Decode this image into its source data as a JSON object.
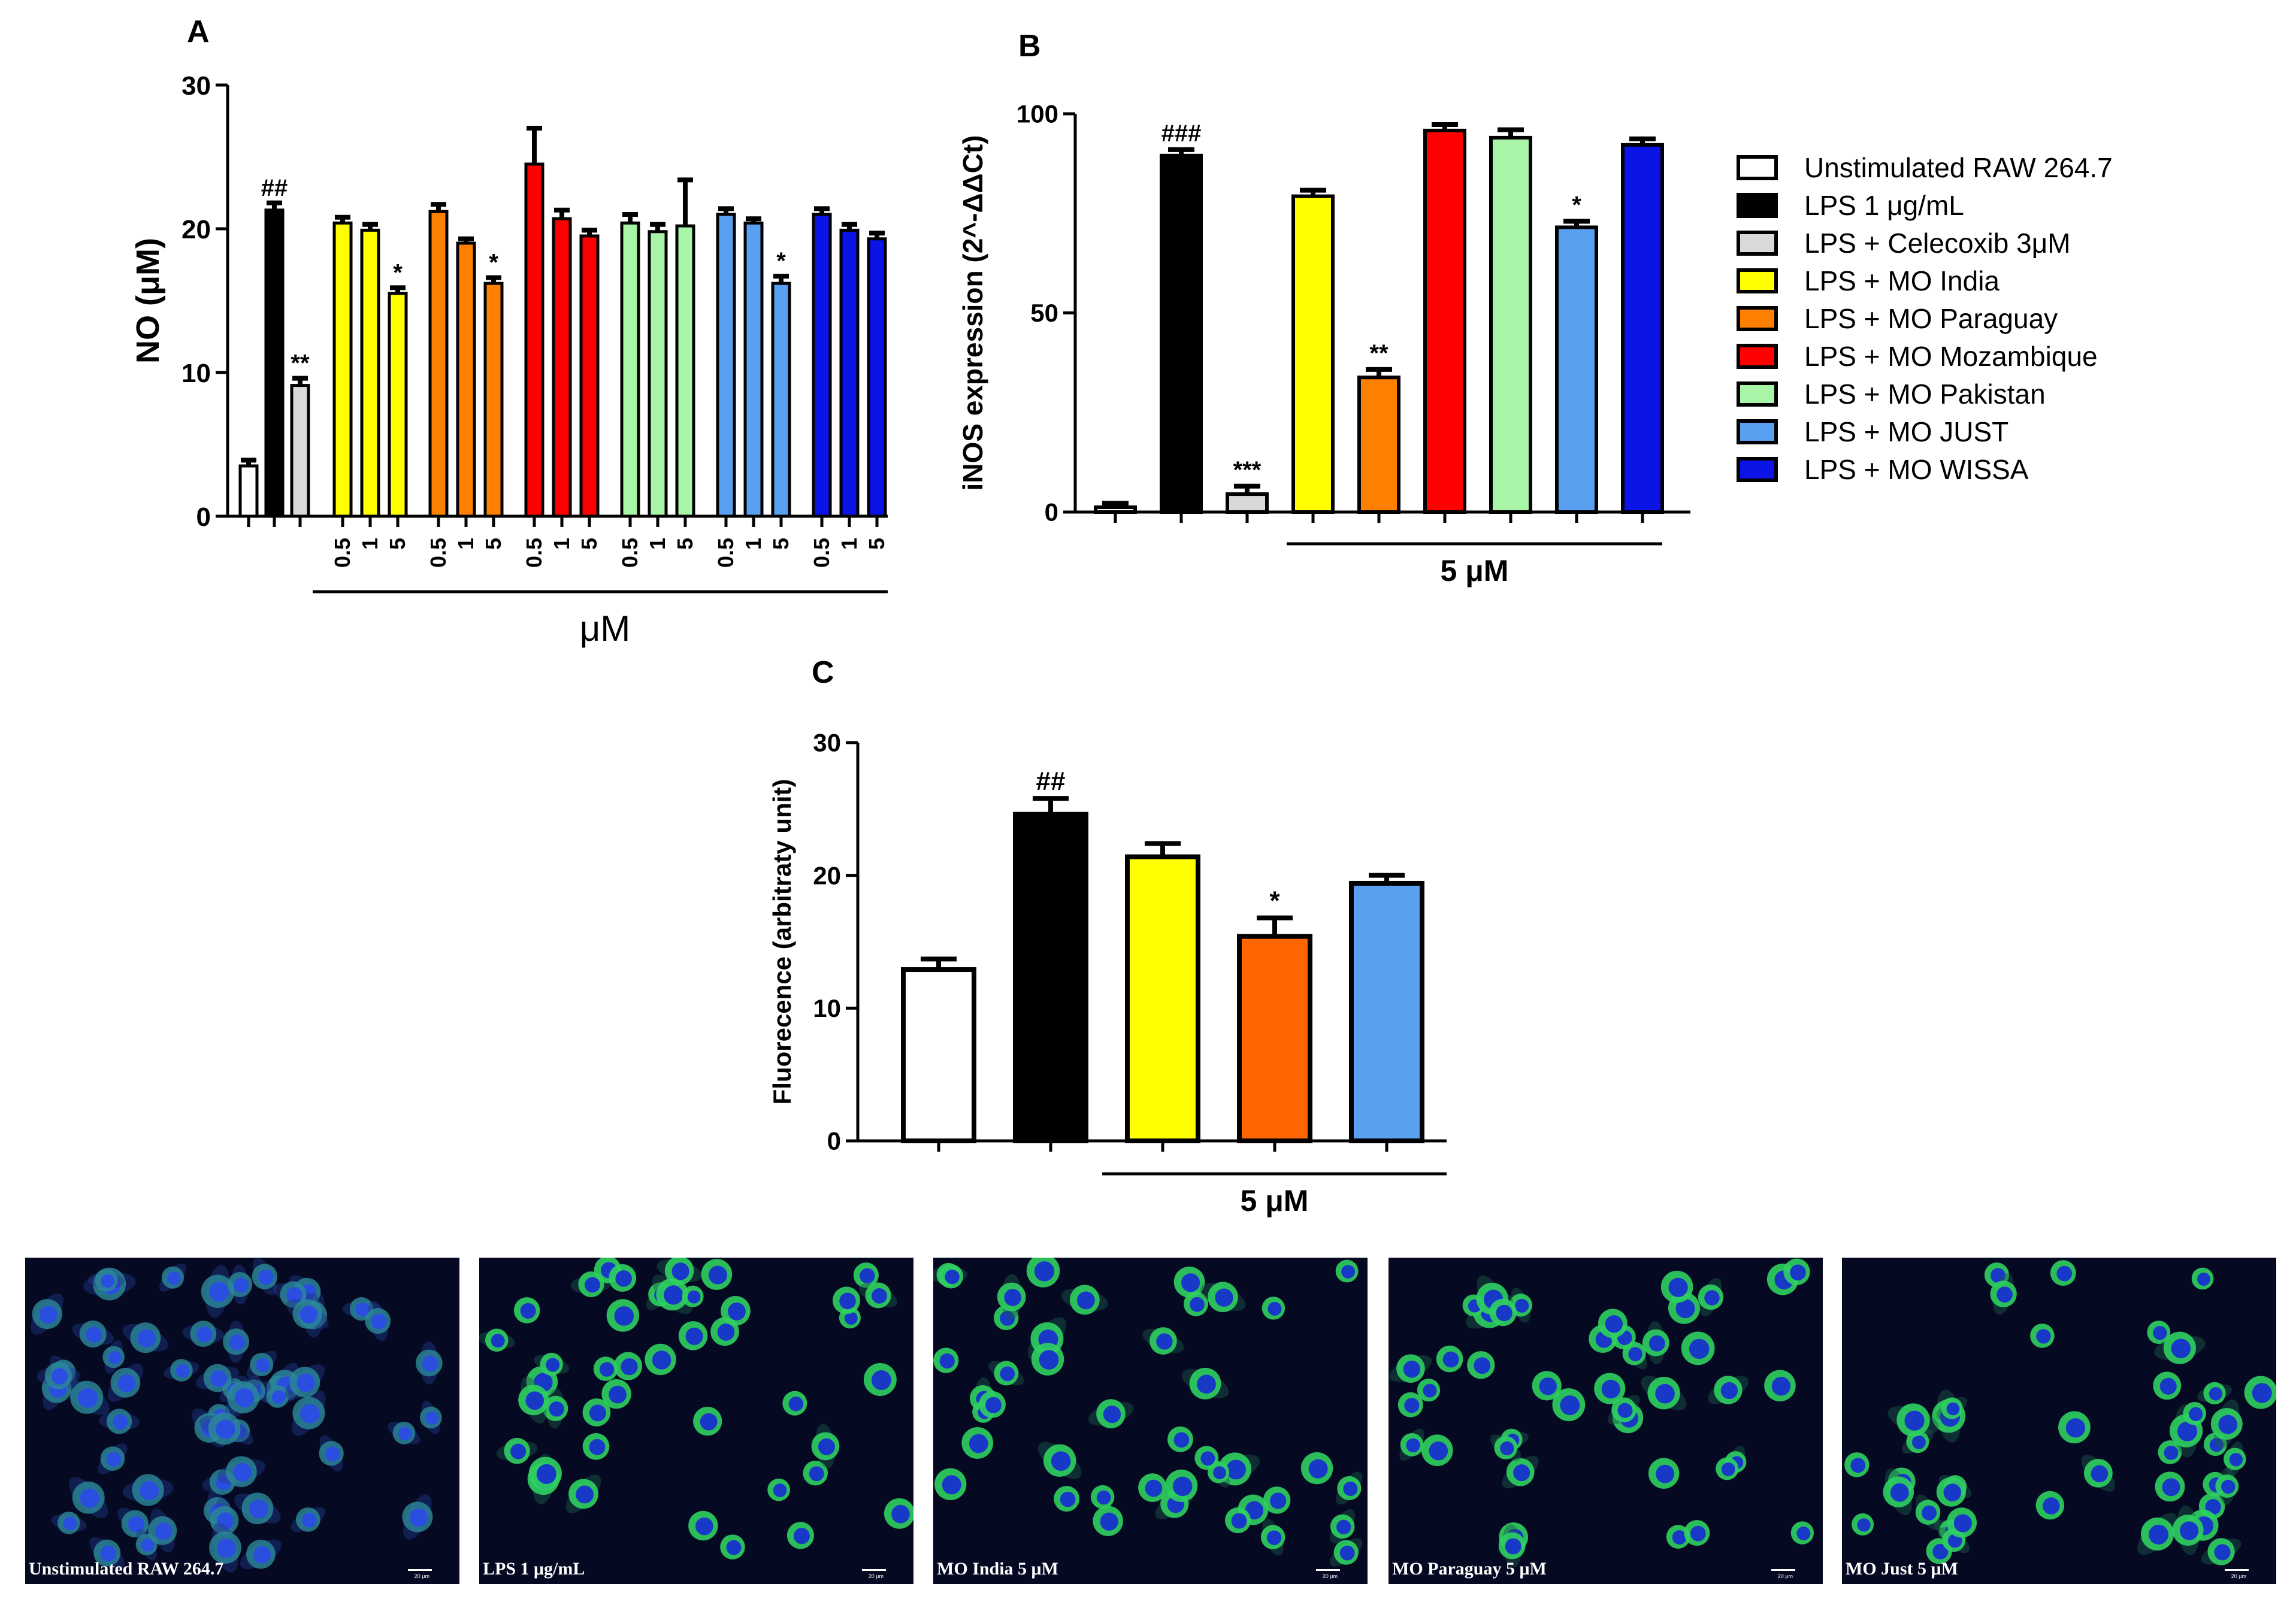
{
  "panel_labels": {
    "a": "A",
    "b": "B",
    "c": "C"
  },
  "colors": {
    "unstimulated": "#ffffff",
    "lps": "#000000",
    "celecoxib": "#d9d9d9",
    "india": "#ffff00",
    "paraguay": "#ff8000",
    "mozambique": "#ff0000",
    "pakistan": "#a8f5a8",
    "just": "#5aa0f0",
    "wissa": "#0a14e6"
  },
  "legend": [
    {
      "label": "Unstimulated RAW 264.7",
      "color": "#ffffff"
    },
    {
      "label": "LPS 1 μg/mL",
      "color": "#000000"
    },
    {
      "label": "LPS + Celecoxib 3μM",
      "color": "#d9d9d9"
    },
    {
      "label": "LPS + MO India",
      "color": "#ffff00"
    },
    {
      "label": "LPS + MO Paraguay",
      "color": "#ff8000"
    },
    {
      "label": "LPS + MO Mozambique",
      "color": "#ff0000"
    },
    {
      "label": "LPS + MO Pakistan",
      "color": "#a8f5a8"
    },
    {
      "label": "LPS + MO JUST",
      "color": "#5aa0f0"
    },
    {
      "label": "LPS + MO WISSA",
      "color": "#0a14e6"
    }
  ],
  "chart_data": [
    {
      "panel": "A",
      "type": "bar",
      "ylabel": "NO (μM)",
      "xlabel": "μM",
      "ylim": [
        0,
        30
      ],
      "yticks": [
        0,
        10,
        20,
        30
      ],
      "bars": [
        {
          "group": "Unstimulated RAW 264.7",
          "dose": "",
          "value": 3.5,
          "error": 0.4,
          "color": "#ffffff",
          "annotation": ""
        },
        {
          "group": "LPS 1 μg/mL",
          "dose": "",
          "value": 21.3,
          "error": 0.5,
          "color": "#000000",
          "annotation": "##"
        },
        {
          "group": "LPS + Celecoxib 3μM",
          "dose": "",
          "value": 9.1,
          "error": 0.5,
          "color": "#d9d9d9",
          "annotation": "**"
        },
        {
          "group": "LPS + MO India",
          "dose": "0.5",
          "value": 20.4,
          "error": 0.4,
          "color": "#ffff00",
          "annotation": ""
        },
        {
          "group": "LPS + MO India",
          "dose": "1",
          "value": 19.9,
          "error": 0.4,
          "color": "#ffff00",
          "annotation": ""
        },
        {
          "group": "LPS + MO India",
          "dose": "5",
          "value": 15.5,
          "error": 0.4,
          "color": "#ffff00",
          "annotation": "*"
        },
        {
          "group": "LPS + MO Paraguay",
          "dose": "0.5",
          "value": 21.2,
          "error": 0.5,
          "color": "#ff8000",
          "annotation": ""
        },
        {
          "group": "LPS + MO Paraguay",
          "dose": "1",
          "value": 19.0,
          "error": 0.3,
          "color": "#ff8000",
          "annotation": ""
        },
        {
          "group": "LPS + MO Paraguay",
          "dose": "5",
          "value": 16.2,
          "error": 0.4,
          "color": "#ff8000",
          "annotation": "*"
        },
        {
          "group": "LPS + MO Mozambique",
          "dose": "0.5",
          "value": 24.5,
          "error": 2.5,
          "color": "#ff0000",
          "annotation": ""
        },
        {
          "group": "LPS + MO Mozambique",
          "dose": "1",
          "value": 20.7,
          "error": 0.6,
          "color": "#ff0000",
          "annotation": ""
        },
        {
          "group": "LPS + MO Mozambique",
          "dose": "5",
          "value": 19.5,
          "error": 0.4,
          "color": "#ff0000",
          "annotation": ""
        },
        {
          "group": "LPS + MO Pakistan",
          "dose": "0.5",
          "value": 20.4,
          "error": 0.6,
          "color": "#a8f5a8",
          "annotation": ""
        },
        {
          "group": "LPS + MO Pakistan",
          "dose": "1",
          "value": 19.8,
          "error": 0.5,
          "color": "#a8f5a8",
          "annotation": ""
        },
        {
          "group": "LPS + MO Pakistan",
          "dose": "5",
          "value": 20.2,
          "error": 3.2,
          "color": "#a8f5a8",
          "annotation": ""
        },
        {
          "group": "LPS + MO JUST",
          "dose": "0.5",
          "value": 21.0,
          "error": 0.4,
          "color": "#5aa0f0",
          "annotation": ""
        },
        {
          "group": "LPS + MO JUST",
          "dose": "1",
          "value": 20.4,
          "error": 0.3,
          "color": "#5aa0f0",
          "annotation": ""
        },
        {
          "group": "LPS + MO JUST",
          "dose": "5",
          "value": 16.2,
          "error": 0.5,
          "color": "#5aa0f0",
          "annotation": "*"
        },
        {
          "group": "LPS + MO WISSA",
          "dose": "0.5",
          "value": 21.0,
          "error": 0.4,
          "color": "#0a14e6",
          "annotation": ""
        },
        {
          "group": "LPS + MO WISSA",
          "dose": "1",
          "value": 19.9,
          "error": 0.4,
          "color": "#0a14e6",
          "annotation": ""
        },
        {
          "group": "LPS + MO WISSA",
          "dose": "5",
          "value": 19.3,
          "error": 0.4,
          "color": "#0a14e6",
          "annotation": ""
        }
      ]
    },
    {
      "panel": "B",
      "type": "bar",
      "ylabel": "iNOS expression (2^-ΔΔCt)",
      "xlabel": "5 μM",
      "ylim": [
        0,
        100
      ],
      "yticks": [
        0,
        50,
        100
      ],
      "bars": [
        {
          "group": "Unstimulated RAW 264.7",
          "value": 1.2,
          "error": 1.0,
          "color": "#ffffff",
          "annotation": ""
        },
        {
          "group": "LPS 1 μg/mL",
          "value": 89.5,
          "error": 1.5,
          "color": "#000000",
          "annotation": "###"
        },
        {
          "group": "LPS + Celecoxib 3μM",
          "value": 4.5,
          "error": 2.0,
          "color": "#d9d9d9",
          "annotation": "***"
        },
        {
          "group": "LPS + MO India",
          "value": 79.3,
          "error": 1.5,
          "color": "#ffff00",
          "annotation": ""
        },
        {
          "group": "LPS + MO Paraguay",
          "value": 33.8,
          "error": 2.0,
          "color": "#ff8000",
          "annotation": "**"
        },
        {
          "group": "LPS + MO Mozambique",
          "value": 95.8,
          "error": 1.5,
          "color": "#ff0000",
          "annotation": ""
        },
        {
          "group": "LPS + MO Pakistan",
          "value": 94.0,
          "error": 2.0,
          "color": "#a8f5a8",
          "annotation": ""
        },
        {
          "group": "LPS + MO JUST",
          "value": 71.5,
          "error": 1.5,
          "color": "#5aa0f0",
          "annotation": "*"
        },
        {
          "group": "LPS + MO WISSA",
          "value": 92.2,
          "error": 1.5,
          "color": "#0a14e6",
          "annotation": ""
        }
      ]
    },
    {
      "panel": "C",
      "type": "bar",
      "ylabel": "Fluorecence (arbitraty unit)",
      "xlabel": "5 μM",
      "ylim": [
        0,
        30
      ],
      "yticks": [
        0,
        10,
        20,
        30
      ],
      "bars": [
        {
          "group": "Unstimulated RAW 264.7",
          "value": 12.9,
          "error": 0.8,
          "color": "#ffffff",
          "annotation": ""
        },
        {
          "group": "LPS 1 μg/mL",
          "value": 24.6,
          "error": 1.2,
          "color": "#000000",
          "annotation": "##"
        },
        {
          "group": "LPS + MO India",
          "value": 21.4,
          "error": 1.0,
          "color": "#ffff00",
          "annotation": ""
        },
        {
          "group": "LPS + MO Paraguay",
          "value": 15.4,
          "error": 1.4,
          "color": "#ff6600",
          "annotation": "*"
        },
        {
          "group": "LPS + MO JUST",
          "value": 19.4,
          "error": 0.6,
          "color": "#5aa0f0",
          "annotation": ""
        }
      ]
    }
  ],
  "micrographs": [
    {
      "caption": "Unstimulated RAW 264.7",
      "scale": "20 μm"
    },
    {
      "caption": "LPS 1 μg/mL",
      "scale": "20 μm"
    },
    {
      "caption": "MO India 5 μM",
      "scale": "20 μm"
    },
    {
      "caption": "MO Paraguay 5 μM",
      "scale": "20 μm"
    },
    {
      "caption": "MO Just 5 μM",
      "scale": "20 μm"
    }
  ]
}
